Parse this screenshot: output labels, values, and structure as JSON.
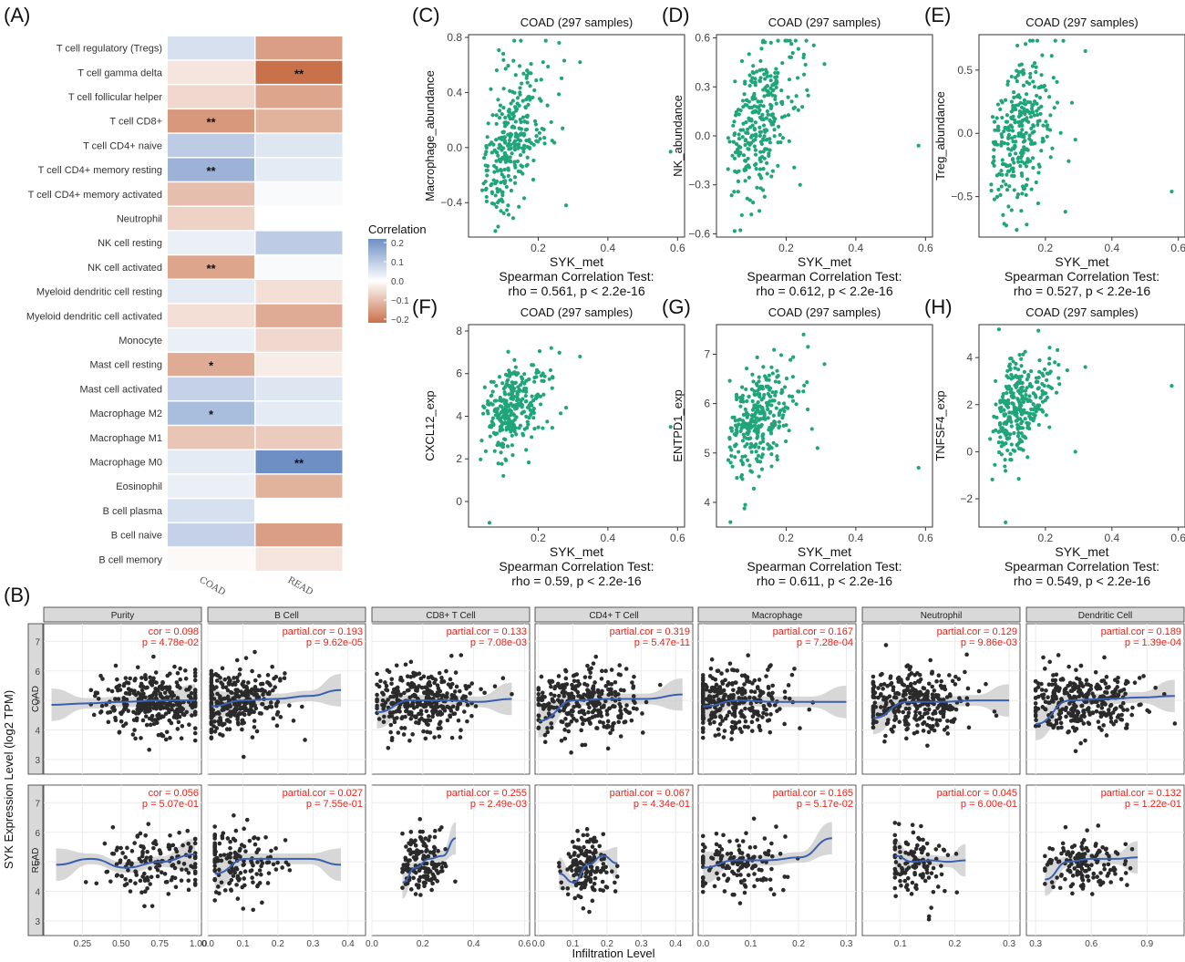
{
  "panel_labels": {
    "A": "(A)",
    "B": "(B)",
    "C": "(C)",
    "D": "(D)",
    "E": "(E)",
    "F": "(F)",
    "G": "(G)",
    "H": "(H)"
  },
  "chart_data": [
    {
      "id": "A",
      "type": "heatmap",
      "rows": [
        "T cell regulatory (Tregs)",
        "T cell gamma delta",
        "T cell follicular helper",
        "T cell CD8+",
        "T cell CD4+ naive",
        "T cell CD4+ memory resting",
        "T cell CD4+ memory activated",
        "Neutrophil",
        "NK cell resting",
        "NK cell activated",
        "Myeloid dendritic cell resting",
        "Myeloid dendritic cell activated",
        "Monocyte",
        "Mast cell resting",
        "Mast cell activated",
        "Macrophage M2",
        "Macrophage M1",
        "Macrophage M0",
        "Eosinophil",
        "B cell plasma",
        "B cell naive",
        "B cell memory"
      ],
      "columns": [
        "COAD",
        "READ"
      ],
      "values": [
        [
          0.06,
          -0.15
        ],
        [
          -0.04,
          -0.22
        ],
        [
          -0.06,
          -0.14
        ],
        [
          -0.16,
          -0.12
        ],
        [
          0.1,
          0.05
        ],
        [
          0.15,
          0.04
        ],
        [
          -0.1,
          0.01
        ],
        [
          -0.07,
          0.0
        ],
        [
          0.03,
          0.1
        ],
        [
          -0.14,
          0.01
        ],
        [
          0.04,
          -0.05
        ],
        [
          -0.05,
          -0.13
        ],
        [
          0.03,
          -0.06
        ],
        [
          -0.13,
          -0.03
        ],
        [
          0.09,
          0.05
        ],
        [
          0.13,
          0.04
        ],
        [
          -0.09,
          -0.08
        ],
        [
          0.04,
          0.22
        ],
        [
          0.03,
          -0.12
        ],
        [
          0.06,
          0.0
        ],
        [
          0.09,
          -0.15
        ],
        [
          -0.01,
          -0.04
        ]
      ],
      "significance": [
        [
          "",
          ""
        ],
        [
          "",
          "**"
        ],
        [
          "",
          ""
        ],
        [
          "**",
          ""
        ],
        [
          "",
          ""
        ],
        [
          "**",
          ""
        ],
        [
          "",
          ""
        ],
        [
          "",
          ""
        ],
        [
          "",
          ""
        ],
        [
          "**",
          ""
        ],
        [
          "",
          ""
        ],
        [
          "",
          ""
        ],
        [
          "",
          ""
        ],
        [
          "*",
          ""
        ],
        [
          "",
          ""
        ],
        [
          "*",
          ""
        ],
        [
          "",
          ""
        ],
        [
          "",
          "**"
        ],
        [
          "",
          ""
        ],
        [
          "",
          ""
        ],
        [
          "",
          ""
        ],
        [
          "",
          ""
        ]
      ],
      "legend": {
        "title": "Correlation",
        "ticks": [
          "0.2",
          "0.1",
          "0.0",
          "−0.1",
          "−0.2"
        ],
        "colors": {
          "high": "#6e8fc4",
          "mid": "#ffffff",
          "low": "#c8714a"
        }
      }
    },
    {
      "id": "C",
      "type": "scatter",
      "title": "COAD (297 samples)",
      "xlabel": "SYK_met",
      "ylabel": "Macrophage_abundance",
      "xlim": [
        0,
        0.62
      ],
      "ylim": [
        -0.65,
        0.82
      ],
      "xticks": [
        "0.2",
        "0.4",
        "0.6"
      ],
      "yticks": [
        "−0.4",
        "0.0",
        "0.4",
        "0.8"
      ],
      "ytick_values": [
        -0.4,
        0.0,
        0.4,
        0.8
      ],
      "test": "Spearman Correlation Test:",
      "result": "rho = 0.561, p < 2.2e-16",
      "rho": 0.561,
      "seed": 11,
      "ymean": 0.05,
      "yspread": 0.33,
      "outliers": [
        [
          0.58,
          -0.03
        ],
        [
          0.32,
          0.62
        ],
        [
          0.24,
          0.05
        ],
        [
          0.28,
          -0.42
        ],
        [
          0.26,
          0.76
        ]
      ],
      "color": "#1fa579"
    },
    {
      "id": "D",
      "type": "scatter",
      "title": "COAD (297 samples)",
      "xlabel": "SYK_met",
      "ylabel": "NK_abundance",
      "xlim": [
        0,
        0.62
      ],
      "ylim": [
        -0.62,
        0.62
      ],
      "xticks": [
        "0.2",
        "0.4",
        "0.6"
      ],
      "yticks": [
        "−0.6",
        "−0.3",
        "0.0",
        "0.3",
        "0.6"
      ],
      "ytick_values": [
        -0.6,
        -0.3,
        0.0,
        0.3,
        0.6
      ],
      "test": "Spearman Correlation Test:",
      "result": "rho = 0.612, p < 2.2e-16",
      "rho": 0.612,
      "seed": 23,
      "ymean": 0.05,
      "yspread": 0.28,
      "outliers": [
        [
          0.58,
          -0.06
        ],
        [
          0.31,
          0.44
        ],
        [
          0.25,
          0.48
        ],
        [
          0.24,
          -0.3
        ],
        [
          0.26,
          0.28
        ]
      ],
      "color": "#1fa579"
    },
    {
      "id": "E",
      "type": "scatter",
      "title": "COAD (297 samples)",
      "xlabel": "SYK_met",
      "ylabel": "Treg_abundance",
      "xlim": [
        0,
        0.62
      ],
      "ylim": [
        -0.82,
        0.78
      ],
      "xticks": [
        "0.2",
        "0.4",
        "0.6"
      ],
      "yticks": [
        "−0.5",
        "0.0",
        "0.5"
      ],
      "ytick_values": [
        -0.5,
        0.0,
        0.5
      ],
      "test": "Spearman Correlation Test:",
      "result": "rho = 0.527, p < 2.2e-16",
      "rho": 0.527,
      "seed": 37,
      "ymean": 0.0,
      "yspread": 0.36,
      "outliers": [
        [
          0.58,
          -0.46
        ],
        [
          0.32,
          0.65
        ],
        [
          0.29,
          -0.05
        ],
        [
          0.26,
          -0.62
        ],
        [
          0.27,
          -0.22
        ]
      ],
      "color": "#1fa579"
    },
    {
      "id": "F",
      "type": "scatter",
      "title": "COAD (297 samples)",
      "xlabel": "SYK_met",
      "ylabel": "CXCL12_exp",
      "xlim": [
        0,
        0.62
      ],
      "ylim": [
        -1.2,
        8.3
      ],
      "xticks": [
        "0.2",
        "0.4",
        "0.6"
      ],
      "yticks": [
        "0",
        "2",
        "4",
        "6",
        "8"
      ],
      "ytick_values": [
        0,
        2,
        4,
        6,
        8
      ],
      "test": "Spearman Correlation Test:",
      "result": "rho = 0.59, p < 2.2e-16",
      "rho": 0.59,
      "seed": 51,
      "ymean": 4.2,
      "yspread": 1.3,
      "outliers": [
        [
          0.58,
          3.5
        ],
        [
          0.32,
          6.8
        ],
        [
          0.06,
          -1.0
        ],
        [
          0.28,
          4.4
        ],
        [
          0.1,
          1.2
        ]
      ],
      "color": "#1fa579"
    },
    {
      "id": "G",
      "type": "scatter",
      "title": "COAD (297 samples)",
      "xlabel": "SYK_met",
      "ylabel": "ENTPD1_exp",
      "xlim": [
        0,
        0.62
      ],
      "ylim": [
        3.5,
        7.6
      ],
      "xticks": [
        "0.2",
        "0.4",
        "0.6"
      ],
      "yticks": [
        "4",
        "5",
        "6",
        "7"
      ],
      "ytick_values": [
        4,
        5,
        6,
        7
      ],
      "test": "Spearman Correlation Test:",
      "result": "rho = 0.611, p < 2.2e-16",
      "rho": 0.611,
      "seed": 67,
      "ymean": 5.6,
      "yspread": 0.65,
      "outliers": [
        [
          0.58,
          4.7
        ],
        [
          0.31,
          6.8
        ],
        [
          0.29,
          5.1
        ],
        [
          0.25,
          7.4
        ],
        [
          0.04,
          3.6
        ]
      ],
      "color": "#1fa579"
    },
    {
      "id": "H",
      "type": "scatter",
      "title": "COAD (297 samples)",
      "xlabel": "SYK_met",
      "ylabel": "TNFSF4_exp",
      "xlim": [
        0,
        0.62
      ],
      "ylim": [
        -3.2,
        5.4
      ],
      "xticks": [
        "0.2",
        "0.4",
        "0.6"
      ],
      "yticks": [
        "−2",
        "0",
        "2",
        "4"
      ],
      "ytick_values": [
        -2,
        0,
        2,
        4
      ],
      "test": "Spearman Correlation Test:",
      "result": "rho = 0.549, p < 2.2e-16",
      "rho": 0.549,
      "seed": 79,
      "ymean": 1.8,
      "yspread": 1.3,
      "outliers": [
        [
          0.58,
          2.8
        ],
        [
          0.32,
          3.6
        ],
        [
          0.29,
          0.0
        ],
        [
          0.08,
          -3.0
        ],
        [
          0.06,
          5.2
        ]
      ],
      "color": "#1fa579"
    },
    {
      "id": "B",
      "type": "scatter",
      "ylabel": "SYK Expression Level (log2 TPM)",
      "xlabel": "Infiltration Level",
      "rows": [
        "COAD",
        "READ"
      ],
      "ylim": [
        2.5,
        7.6
      ],
      "yticks": [
        "3",
        "4",
        "5",
        "6",
        "7"
      ],
      "ytick_values": [
        3,
        4,
        5,
        6,
        7
      ],
      "columns": [
        {
          "name": "Purity",
          "xlim": [
            0.0,
            1.02
          ],
          "xticks": [
            "0.25",
            "0.50",
            "0.75",
            "1.00"
          ],
          "xtick_values": [
            0.25,
            0.5,
            0.75,
            1.0
          ],
          "COAD": {
            "stat1": "cor = 0.098",
            "stat2": "p = 4.78e-02",
            "xrange": [
              0.05,
              0.98
            ],
            "center": 0.7,
            "n": 320,
            "trend": [
              4.85,
              4.9,
              4.95,
              5.0,
              5.0
            ]
          },
          "READ": {
            "stat1": "cor = 0.056",
            "stat2": "p = 5.07e-01",
            "xrange": [
              0.08,
              0.98
            ],
            "center": 0.72,
            "n": 150,
            "trend": [
              4.9,
              5.1,
              4.8,
              5.0,
              5.25
            ]
          }
        },
        {
          "name": "B Cell",
          "xlim": [
            0.0,
            0.45
          ],
          "xticks": [
            "0.0",
            "0.1",
            "0.2",
            "0.3",
            "0.4"
          ],
          "xtick_values": [
            0,
            0.1,
            0.2,
            0.3,
            0.4
          ],
          "COAD": {
            "stat1": "partial.cor = 0.193",
            "stat2": "p = 9.62e-05",
            "xrange": [
              0.01,
              0.38
            ],
            "center": 0.08,
            "n": 320,
            "trend": [
              4.8,
              5.0,
              5.05,
              5.15,
              5.35
            ]
          },
          "READ": {
            "stat1": "partial.cor = 0.027",
            "stat2": "p = 7.55e-01",
            "xrange": [
              0.02,
              0.38
            ],
            "center": 0.09,
            "n": 150,
            "trend": [
              4.6,
              5.1,
              5.1,
              5.1,
              4.9
            ]
          }
        },
        {
          "name": "CD8+ T Cell",
          "xlim": [
            0.0,
            0.62
          ],
          "xticks": [
            "0.0",
            "0.2",
            "0.4",
            "0.6"
          ],
          "xtick_values": [
            0,
            0.2,
            0.4,
            0.6
          ],
          "COAD": {
            "stat1": "partial.cor = 0.133",
            "stat2": "p = 7.08e-03",
            "xrange": [
              0.02,
              0.55
            ],
            "center": 0.2,
            "n": 320,
            "trend": [
              4.6,
              5.0,
              5.0,
              4.95,
              5.05
            ]
          },
          "READ": {
            "stat1": "partial.cor = 0.255",
            "stat2": "p = 2.49e-03",
            "xrange": [
              0.12,
              0.33
            ],
            "center": 0.2,
            "n": 150,
            "trend": [
              4.3,
              4.8,
              5.1,
              5.2,
              5.8
            ]
          }
        },
        {
          "name": "CD4+ T Cell",
          "xlim": [
            -0.01,
            0.45
          ],
          "xticks": [
            "0.0",
            "0.1",
            "0.2",
            "0.3",
            "0.4"
          ],
          "xtick_values": [
            0,
            0.1,
            0.2,
            0.3,
            0.4
          ],
          "COAD": {
            "stat1": "partial.cor = 0.319",
            "stat2": "p = 5.47e-11",
            "xrange": [
              0.0,
              0.42
            ],
            "center": 0.13,
            "n": 320,
            "trend": [
              4.3,
              5.0,
              5.05,
              5.05,
              5.2
            ]
          },
          "READ": {
            "stat1": "partial.cor = 0.067",
            "stat2": "p = 4.34e-01",
            "xrange": [
              0.06,
              0.23
            ],
            "center": 0.14,
            "n": 150,
            "trend": [
              4.6,
              4.3,
              4.9,
              5.2,
              4.95
            ]
          }
        },
        {
          "name": "Macrophage",
          "xlim": [
            -0.01,
            0.32
          ],
          "xticks": [
            "0.0",
            "0.1",
            "0.2",
            "0.3"
          ],
          "xtick_values": [
            0,
            0.1,
            0.2,
            0.3
          ],
          "COAD": {
            "stat1": "partial.cor = 0.167",
            "stat2": "p = 7.28e-04",
            "xrange": [
              0.0,
              0.3
            ],
            "center": 0.05,
            "n": 320,
            "trend": [
              4.8,
              5.0,
              4.95,
              4.95,
              4.95
            ]
          },
          "READ": {
            "stat1": "partial.cor = 0.165",
            "stat2": "p = 5.17e-02",
            "xrange": [
              0.0,
              0.27
            ],
            "center": 0.06,
            "n": 150,
            "trend": [
              4.8,
              5.05,
              5.05,
              5.15,
              5.8
            ]
          }
        },
        {
          "name": "Neutrophil",
          "xlim": [
            0.03,
            0.32
          ],
          "xticks": [
            "0.1",
            "0.2",
            "0.3"
          ],
          "xtick_values": [
            0.1,
            0.2,
            0.3
          ],
          "COAD": {
            "stat1": "partial.cor = 0.129",
            "stat2": "p = 9.86e-03",
            "xrange": [
              0.05,
              0.3
            ],
            "center": 0.12,
            "n": 320,
            "trend": [
              4.4,
              4.95,
              4.95,
              5.0,
              5.0
            ]
          },
          "READ": {
            "stat1": "partial.cor = 0.045",
            "stat2": "p = 6.00e-01",
            "xrange": [
              0.09,
              0.22
            ],
            "center": 0.13,
            "n": 120,
            "trend": [
              5.2,
              5.0,
              5.05,
              5.0,
              5.05
            ]
          }
        },
        {
          "name": "Dendritic Cell",
          "xlim": [
            0.25,
            1.1
          ],
          "xticks": [
            "0.3",
            "0.6",
            "0.9"
          ],
          "xtick_values": [
            0.3,
            0.6,
            0.9
          ],
          "COAD": {
            "stat1": "partial.cor = 0.189",
            "stat2": "p = 1.39e-04",
            "xrange": [
              0.3,
              1.05
            ],
            "center": 0.55,
            "n": 320,
            "trend": [
              4.2,
              5.0,
              5.05,
              5.1,
              5.15
            ]
          },
          "READ": {
            "stat1": "partial.cor = 0.132",
            "stat2": "p = 1.22e-01",
            "xrange": [
              0.35,
              0.85
            ],
            "center": 0.55,
            "n": 150,
            "trend": [
              4.4,
              5.0,
              5.1,
              5.1,
              5.15
            ]
          }
        }
      ]
    }
  ],
  "colors": {
    "scatter_green": "#1fa579",
    "trend_blue": "#3a5fb0",
    "stat_red": "#e8231a",
    "band_gray": "#c9c9c9",
    "strip_gray": "#d9d9d9"
  }
}
